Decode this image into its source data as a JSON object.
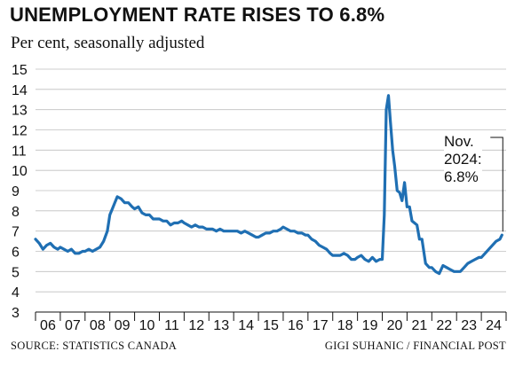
{
  "chart_data": {
    "type": "line",
    "title": "UNEMPLOYMENT RATE RISES TO 6.8%",
    "subtitle": "Per cent, seasonally adjusted",
    "source": "SOURCE: STATISTICS CANADA",
    "credit": "GIGI SUHANIC / FINANCIAL POST",
    "ylim": [
      3,
      15
    ],
    "yticks": [
      3,
      4,
      5,
      6,
      7,
      8,
      9,
      10,
      11,
      12,
      13,
      14,
      15
    ],
    "xlim": [
      2006.0,
      2025.0
    ],
    "xtick_labels": [
      "06",
      "07",
      "08",
      "09",
      "10",
      "11",
      "12",
      "13",
      "14",
      "15",
      "16",
      "17",
      "18",
      "19",
      "20",
      "21",
      "22",
      "23",
      "24"
    ],
    "grid": "horizontal",
    "line_color": "#1f6fb3",
    "annotation": {
      "line1": "Nov.",
      "line2": "2024:",
      "line3": "6.8%",
      "x": 2024.83,
      "y": 6.8
    },
    "series": [
      {
        "x": [
          2006.0,
          2006.15,
          2006.3,
          2006.45,
          2006.6,
          2006.75,
          2006.9,
          2007.0,
          2007.15,
          2007.3,
          2007.45,
          2007.6,
          2007.75,
          2007.9,
          2008.0,
          2008.15,
          2008.3,
          2008.45,
          2008.6,
          2008.75,
          2008.9,
          2009.0,
          2009.1,
          2009.2,
          2009.3,
          2009.45,
          2009.6,
          2009.75,
          2009.9,
          2010.0,
          2010.15,
          2010.3,
          2010.45,
          2010.6,
          2010.75,
          2010.9,
          2011.0,
          2011.15,
          2011.3,
          2011.45,
          2011.6,
          2011.75,
          2011.9,
          2012.0,
          2012.15,
          2012.3,
          2012.45,
          2012.6,
          2012.75,
          2012.9,
          2013.0,
          2013.15,
          2013.3,
          2013.45,
          2013.6,
          2013.75,
          2013.9,
          2014.0,
          2014.15,
          2014.3,
          2014.45,
          2014.6,
          2014.75,
          2014.9,
          2015.0,
          2015.15,
          2015.3,
          2015.45,
          2015.6,
          2015.75,
          2015.9,
          2016.0,
          2016.15,
          2016.3,
          2016.45,
          2016.6,
          2016.75,
          2016.9,
          2017.0,
          2017.15,
          2017.3,
          2017.45,
          2017.6,
          2017.75,
          2017.9,
          2018.0,
          2018.15,
          2018.3,
          2018.45,
          2018.6,
          2018.75,
          2018.9,
          2019.0,
          2019.15,
          2019.3,
          2019.45,
          2019.6,
          2019.75,
          2019.9,
          2020.0,
          2020.08,
          2020.16,
          2020.25,
          2020.33,
          2020.42,
          2020.5,
          2020.6,
          2020.7,
          2020.8,
          2020.9,
          2021.0,
          2021.1,
          2021.2,
          2021.3,
          2021.4,
          2021.5,
          2021.6,
          2021.75,
          2021.9,
          2022.0,
          2022.15,
          2022.3,
          2022.45,
          2022.6,
          2022.75,
          2022.9,
          2023.0,
          2023.15,
          2023.3,
          2023.45,
          2023.6,
          2023.75,
          2023.9,
          2024.0,
          2024.15,
          2024.3,
          2024.45,
          2024.6,
          2024.75,
          2024.83
        ],
        "values": [
          6.6,
          6.4,
          6.1,
          6.3,
          6.4,
          6.2,
          6.1,
          6.2,
          6.1,
          6.0,
          6.1,
          5.9,
          5.9,
          6.0,
          6.0,
          6.1,
          6.0,
          6.1,
          6.2,
          6.5,
          7.0,
          7.8,
          8.1,
          8.4,
          8.7,
          8.6,
          8.4,
          8.4,
          8.2,
          8.1,
          8.2,
          7.9,
          7.8,
          7.8,
          7.6,
          7.6,
          7.6,
          7.5,
          7.5,
          7.3,
          7.4,
          7.4,
          7.5,
          7.4,
          7.3,
          7.2,
          7.3,
          7.2,
          7.2,
          7.1,
          7.1,
          7.1,
          7.0,
          7.1,
          7.0,
          7.0,
          7.0,
          7.0,
          7.0,
          6.9,
          7.0,
          6.9,
          6.8,
          6.7,
          6.7,
          6.8,
          6.9,
          6.9,
          7.0,
          7.0,
          7.1,
          7.2,
          7.1,
          7.0,
          7.0,
          6.9,
          6.9,
          6.8,
          6.8,
          6.6,
          6.5,
          6.3,
          6.2,
          6.1,
          5.9,
          5.8,
          5.8,
          5.8,
          5.9,
          5.8,
          5.6,
          5.6,
          5.7,
          5.8,
          5.6,
          5.5,
          5.7,
          5.5,
          5.6,
          5.6,
          7.8,
          13.0,
          13.7,
          12.4,
          11.0,
          10.2,
          9.0,
          8.9,
          8.5,
          9.4,
          8.2,
          8.2,
          7.5,
          7.4,
          7.3,
          6.6,
          6.6,
          5.4,
          5.2,
          5.2,
          5.0,
          4.9,
          5.3,
          5.2,
          5.1,
          5.0,
          5.0,
          5.0,
          5.2,
          5.4,
          5.5,
          5.6,
          5.7,
          5.7,
          5.9,
          6.1,
          6.3,
          6.5,
          6.6,
          6.8
        ]
      }
    ]
  }
}
